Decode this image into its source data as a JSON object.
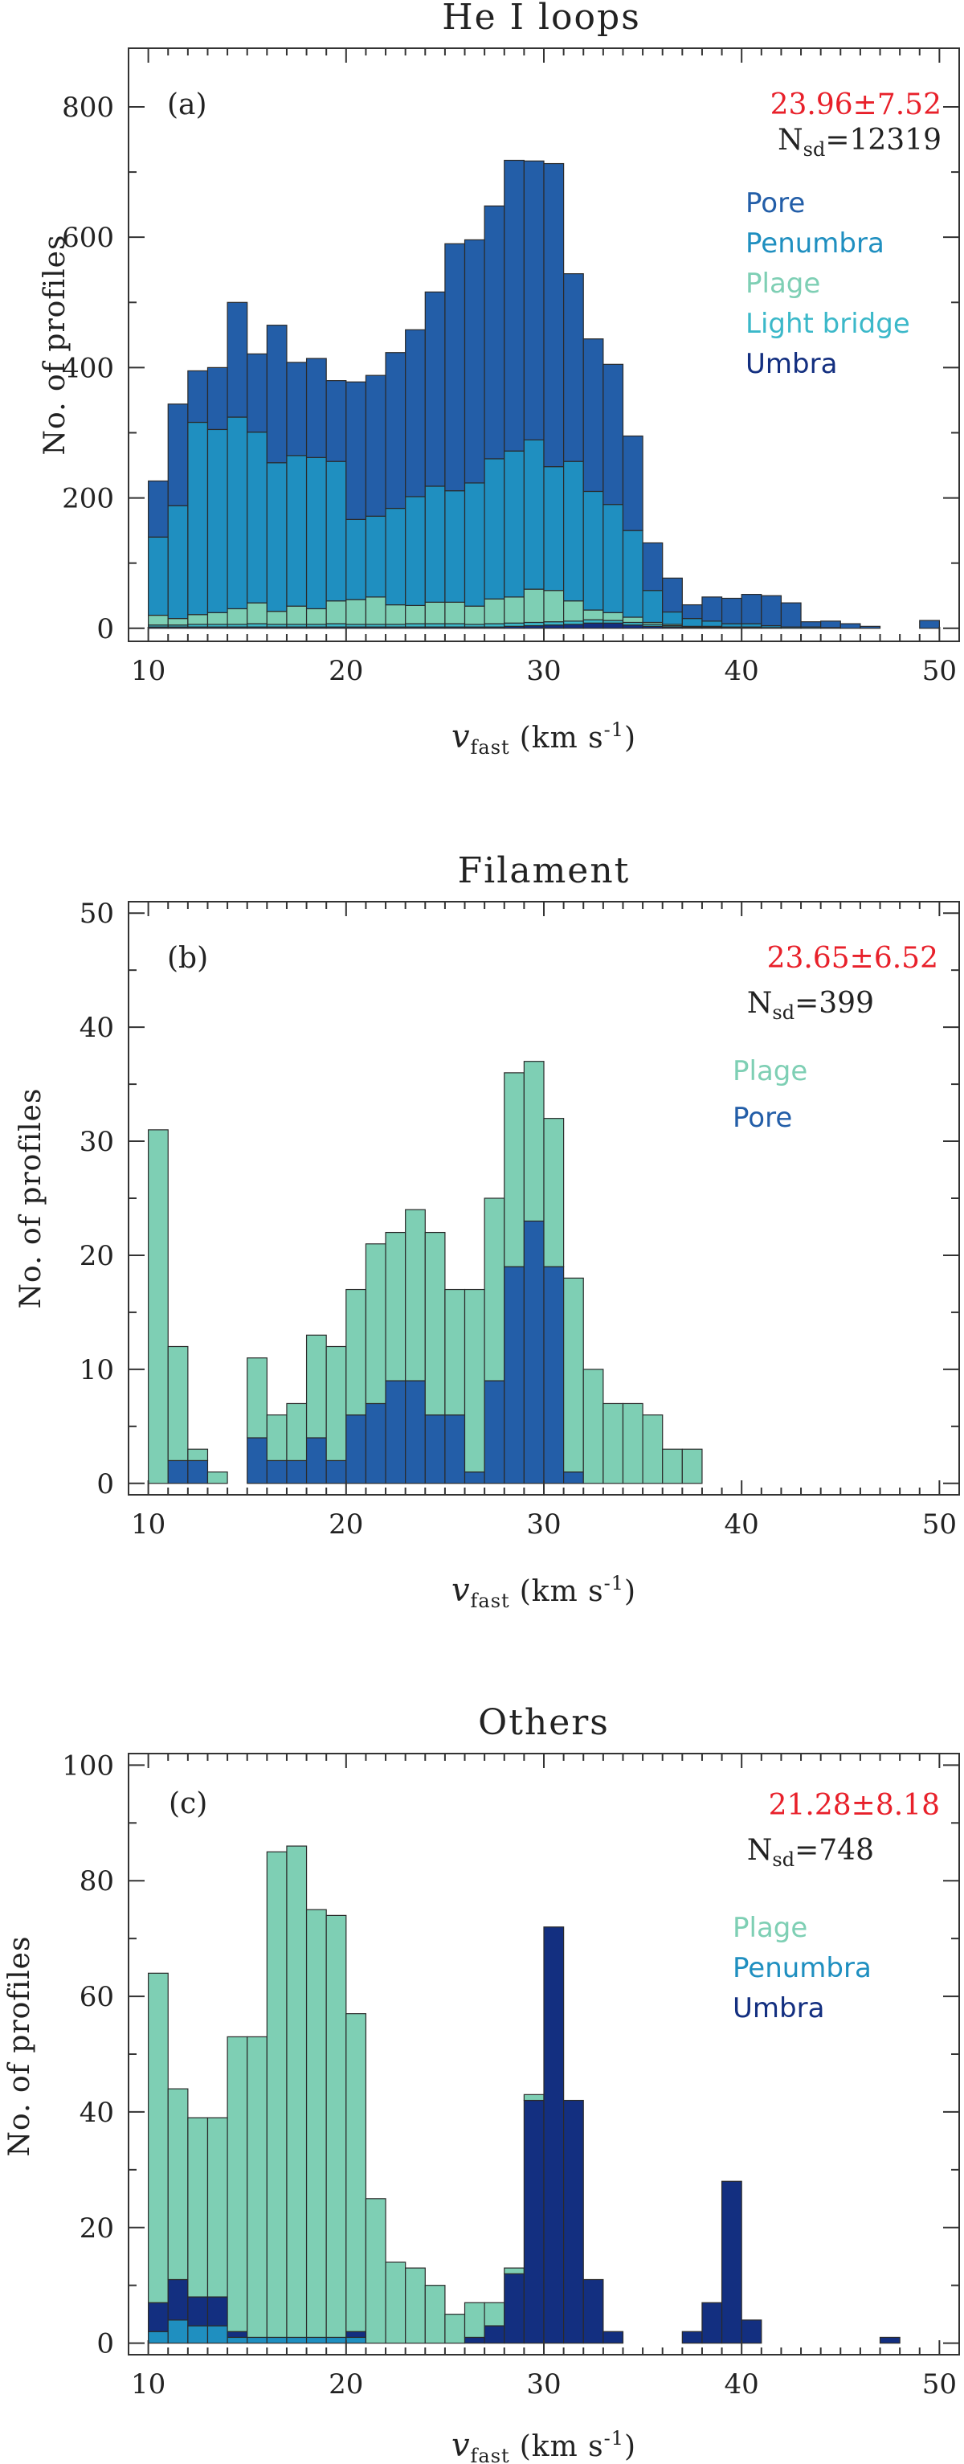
{
  "chart_data": [
    {
      "type": "bar",
      "stacked": true,
      "title": "He I loops",
      "panel_label": "(a)",
      "xlabel": {
        "symbol": "v",
        "subscript": "fast",
        "units": "(km s",
        "exponent": "-1",
        "close": ")"
      },
      "ylabel": "No. of profiles",
      "xlim": [
        9,
        51
      ],
      "ylim": [
        -20,
        890
      ],
      "bin_width": 1,
      "x_ticks": [
        10,
        20,
        30,
        40,
        50
      ],
      "y_ticks": [
        0,
        200,
        400,
        600,
        800
      ],
      "mean_label": "23.96±7.52",
      "nsd_label": {
        "text": "N",
        "subscript": "sd",
        "value": "=12319"
      },
      "legend": [
        {
          "name": "Pore",
          "color": "#235ea8"
        },
        {
          "name": "Penumbra",
          "color": "#1f8fc0"
        },
        {
          "name": "Plage",
          "color": "#7ecfb4"
        },
        {
          "name": "Light bridge",
          "color": "#3bb8c9"
        },
        {
          "name": "Umbra",
          "color": "#132f80"
        }
      ],
      "bin_starts": [
        10,
        11,
        12,
        13,
        14,
        15,
        16,
        17,
        18,
        19,
        20,
        21,
        22,
        23,
        24,
        25,
        26,
        27,
        28,
        29,
        30,
        31,
        32,
        33,
        34,
        35,
        36,
        37,
        38,
        39,
        40,
        41,
        42,
        43,
        44,
        45,
        46,
        47,
        48,
        49
      ],
      "series": [
        {
          "name": "Umbra",
          "color": "#132f80",
          "values": [
            2,
            2,
            2,
            2,
            2,
            2,
            2,
            2,
            2,
            2,
            2,
            2,
            2,
            2,
            2,
            2,
            2,
            2,
            3,
            4,
            5,
            6,
            8,
            8,
            5,
            3,
            2,
            1,
            1,
            1,
            1,
            1,
            0,
            0,
            0,
            0,
            0,
            0,
            0,
            0
          ]
        },
        {
          "name": "Light bridge",
          "color": "#3bb8c9",
          "values": [
            3,
            3,
            4,
            4,
            4,
            5,
            4,
            4,
            4,
            5,
            4,
            4,
            4,
            5,
            5,
            5,
            4,
            5,
            5,
            5,
            5,
            5,
            5,
            4,
            4,
            3,
            2,
            1,
            1,
            1,
            1,
            0,
            0,
            0,
            0,
            0,
            0,
            0,
            0,
            0
          ]
        },
        {
          "name": "Plage",
          "color": "#7ecfb4",
          "values": [
            15,
            10,
            15,
            18,
            24,
            32,
            20,
            28,
            24,
            35,
            38,
            42,
            30,
            28,
            33,
            33,
            28,
            38,
            40,
            51,
            48,
            31,
            15,
            12,
            8,
            3,
            2,
            1,
            1,
            0,
            0,
            0,
            0,
            0,
            0,
            0,
            0,
            0,
            0,
            0
          ]
        },
        {
          "name": "Penumbra",
          "color": "#1f8fc0",
          "values": [
            120,
            173,
            295,
            281,
            294,
            262,
            228,
            231,
            232,
            214,
            123,
            124,
            148,
            167,
            178,
            171,
            189,
            215,
            224,
            229,
            190,
            214,
            182,
            166,
            133,
            49,
            19,
            12,
            8,
            5,
            5,
            3,
            2,
            2,
            1,
            0,
            0,
            0,
            0,
            0
          ]
        },
        {
          "name": "Pore",
          "color": "#235ea8",
          "values": [
            86,
            156,
            79,
            95,
            176,
            120,
            211,
            143,
            152,
            124,
            211,
            216,
            239,
            256,
            298,
            379,
            373,
            388,
            446,
            428,
            465,
            288,
            234,
            215,
            145,
            73,
            52,
            21,
            37,
            39,
            45,
            46,
            37,
            8,
            10,
            7,
            3,
            0,
            0,
            12
          ]
        }
      ]
    },
    {
      "type": "bar",
      "stacked": true,
      "title": "Filament",
      "panel_label": "(b)",
      "xlabel": {
        "symbol": "v",
        "subscript": "fast",
        "units": "(km s",
        "exponent": "-1",
        "close": ")"
      },
      "ylabel": "No. of profiles",
      "xlim": [
        9,
        51
      ],
      "ylim": [
        -1,
        51
      ],
      "bin_width": 1,
      "x_ticks": [
        10,
        20,
        30,
        40,
        50
      ],
      "y_ticks": [
        0,
        10,
        20,
        30,
        40,
        50
      ],
      "mean_label": "23.65±6.52",
      "nsd_label": {
        "text": "N",
        "subscript": "sd",
        "value": "=399"
      },
      "legend": [
        {
          "name": "Plage",
          "color": "#7ecfb4"
        },
        {
          "name": "Pore",
          "color": "#235ea8"
        }
      ],
      "bin_starts": [
        10,
        11,
        12,
        13,
        14,
        15,
        16,
        17,
        18,
        19,
        20,
        21,
        22,
        23,
        24,
        25,
        26,
        27,
        28,
        29,
        30,
        31,
        32,
        33,
        34,
        35,
        36,
        37,
        38,
        39,
        40,
        41,
        42,
        43,
        44,
        45,
        46,
        47,
        48,
        49
      ],
      "series": [
        {
          "name": "Pore",
          "color": "#235ea8",
          "values": [
            0,
            2,
            2,
            0,
            0,
            4,
            2,
            2,
            4,
            2,
            6,
            7,
            9,
            9,
            6,
            6,
            1,
            9,
            19,
            23,
            19,
            1,
            0,
            0,
            0,
            0,
            0,
            0,
            0,
            0,
            0,
            0,
            0,
            0,
            0,
            0,
            0,
            0,
            0,
            0
          ]
        },
        {
          "name": "Plage",
          "color": "#7ecfb4",
          "values": [
            31,
            10,
            1,
            1,
            0,
            7,
            4,
            5,
            9,
            10,
            11,
            14,
            13,
            15,
            16,
            11,
            16,
            16,
            17,
            14,
            13,
            17,
            10,
            7,
            7,
            6,
            3,
            3,
            0,
            0,
            0,
            0,
            0,
            0,
            0,
            0,
            0,
            0,
            0,
            0
          ]
        }
      ]
    },
    {
      "type": "bar",
      "stacked": true,
      "title": "Others",
      "panel_label": "(c)",
      "xlabel": {
        "symbol": "v",
        "subscript": "fast",
        "units": "(km s",
        "exponent": "-1",
        "close": ")"
      },
      "ylabel": "No. of profiles",
      "xlim": [
        9,
        51
      ],
      "ylim": [
        -2,
        102
      ],
      "bin_width": 1,
      "x_ticks": [
        10,
        20,
        30,
        40,
        50
      ],
      "y_ticks": [
        0,
        20,
        40,
        60,
        80,
        100
      ],
      "mean_label": "21.28±8.18",
      "nsd_label": {
        "text": "N",
        "subscript": "sd",
        "value": "=748"
      },
      "legend": [
        {
          "name": "Plage",
          "color": "#7ecfb4"
        },
        {
          "name": "Penumbra",
          "color": "#1f8fc0"
        },
        {
          "name": "Umbra",
          "color": "#132f80"
        }
      ],
      "bin_starts": [
        10,
        11,
        12,
        13,
        14,
        15,
        16,
        17,
        18,
        19,
        20,
        21,
        22,
        23,
        24,
        25,
        26,
        27,
        28,
        29,
        30,
        31,
        32,
        33,
        34,
        35,
        36,
        37,
        38,
        39,
        40,
        41,
        42,
        43,
        44,
        45,
        46,
        47,
        48,
        49
      ],
      "series": [
        {
          "name": "Penumbra",
          "color": "#1f8fc0",
          "values": [
            2,
            4,
            3,
            3,
            1,
            1,
            1,
            1,
            1,
            1,
            1,
            0,
            0,
            0,
            0,
            0,
            0,
            0,
            0,
            0,
            0,
            0,
            0,
            0,
            0,
            0,
            0,
            0,
            0,
            0,
            0,
            0,
            0,
            0,
            0,
            0,
            0,
            0,
            0,
            0
          ]
        },
        {
          "name": "Umbra",
          "color": "#132f80",
          "values": [
            5,
            7,
            5,
            5,
            1,
            0,
            0,
            0,
            0,
            0,
            1,
            0,
            0,
            0,
            0,
            0,
            1,
            3,
            12,
            42,
            72,
            42,
            11,
            2,
            0,
            0,
            0,
            2,
            7,
            28,
            4,
            0,
            0,
            0,
            0,
            0,
            0,
            1,
            0,
            0
          ]
        },
        {
          "name": "Plage",
          "color": "#7ecfb4",
          "values": [
            57,
            33,
            31,
            31,
            51,
            52,
            84,
            85,
            74,
            73,
            55,
            25,
            14,
            13,
            10,
            5,
            6,
            4,
            1,
            1,
            0,
            0,
            0,
            0,
            0,
            0,
            0,
            0,
            0,
            0,
            0,
            0,
            0,
            0,
            0,
            0,
            0,
            0,
            0,
            0
          ]
        }
      ]
    }
  ]
}
